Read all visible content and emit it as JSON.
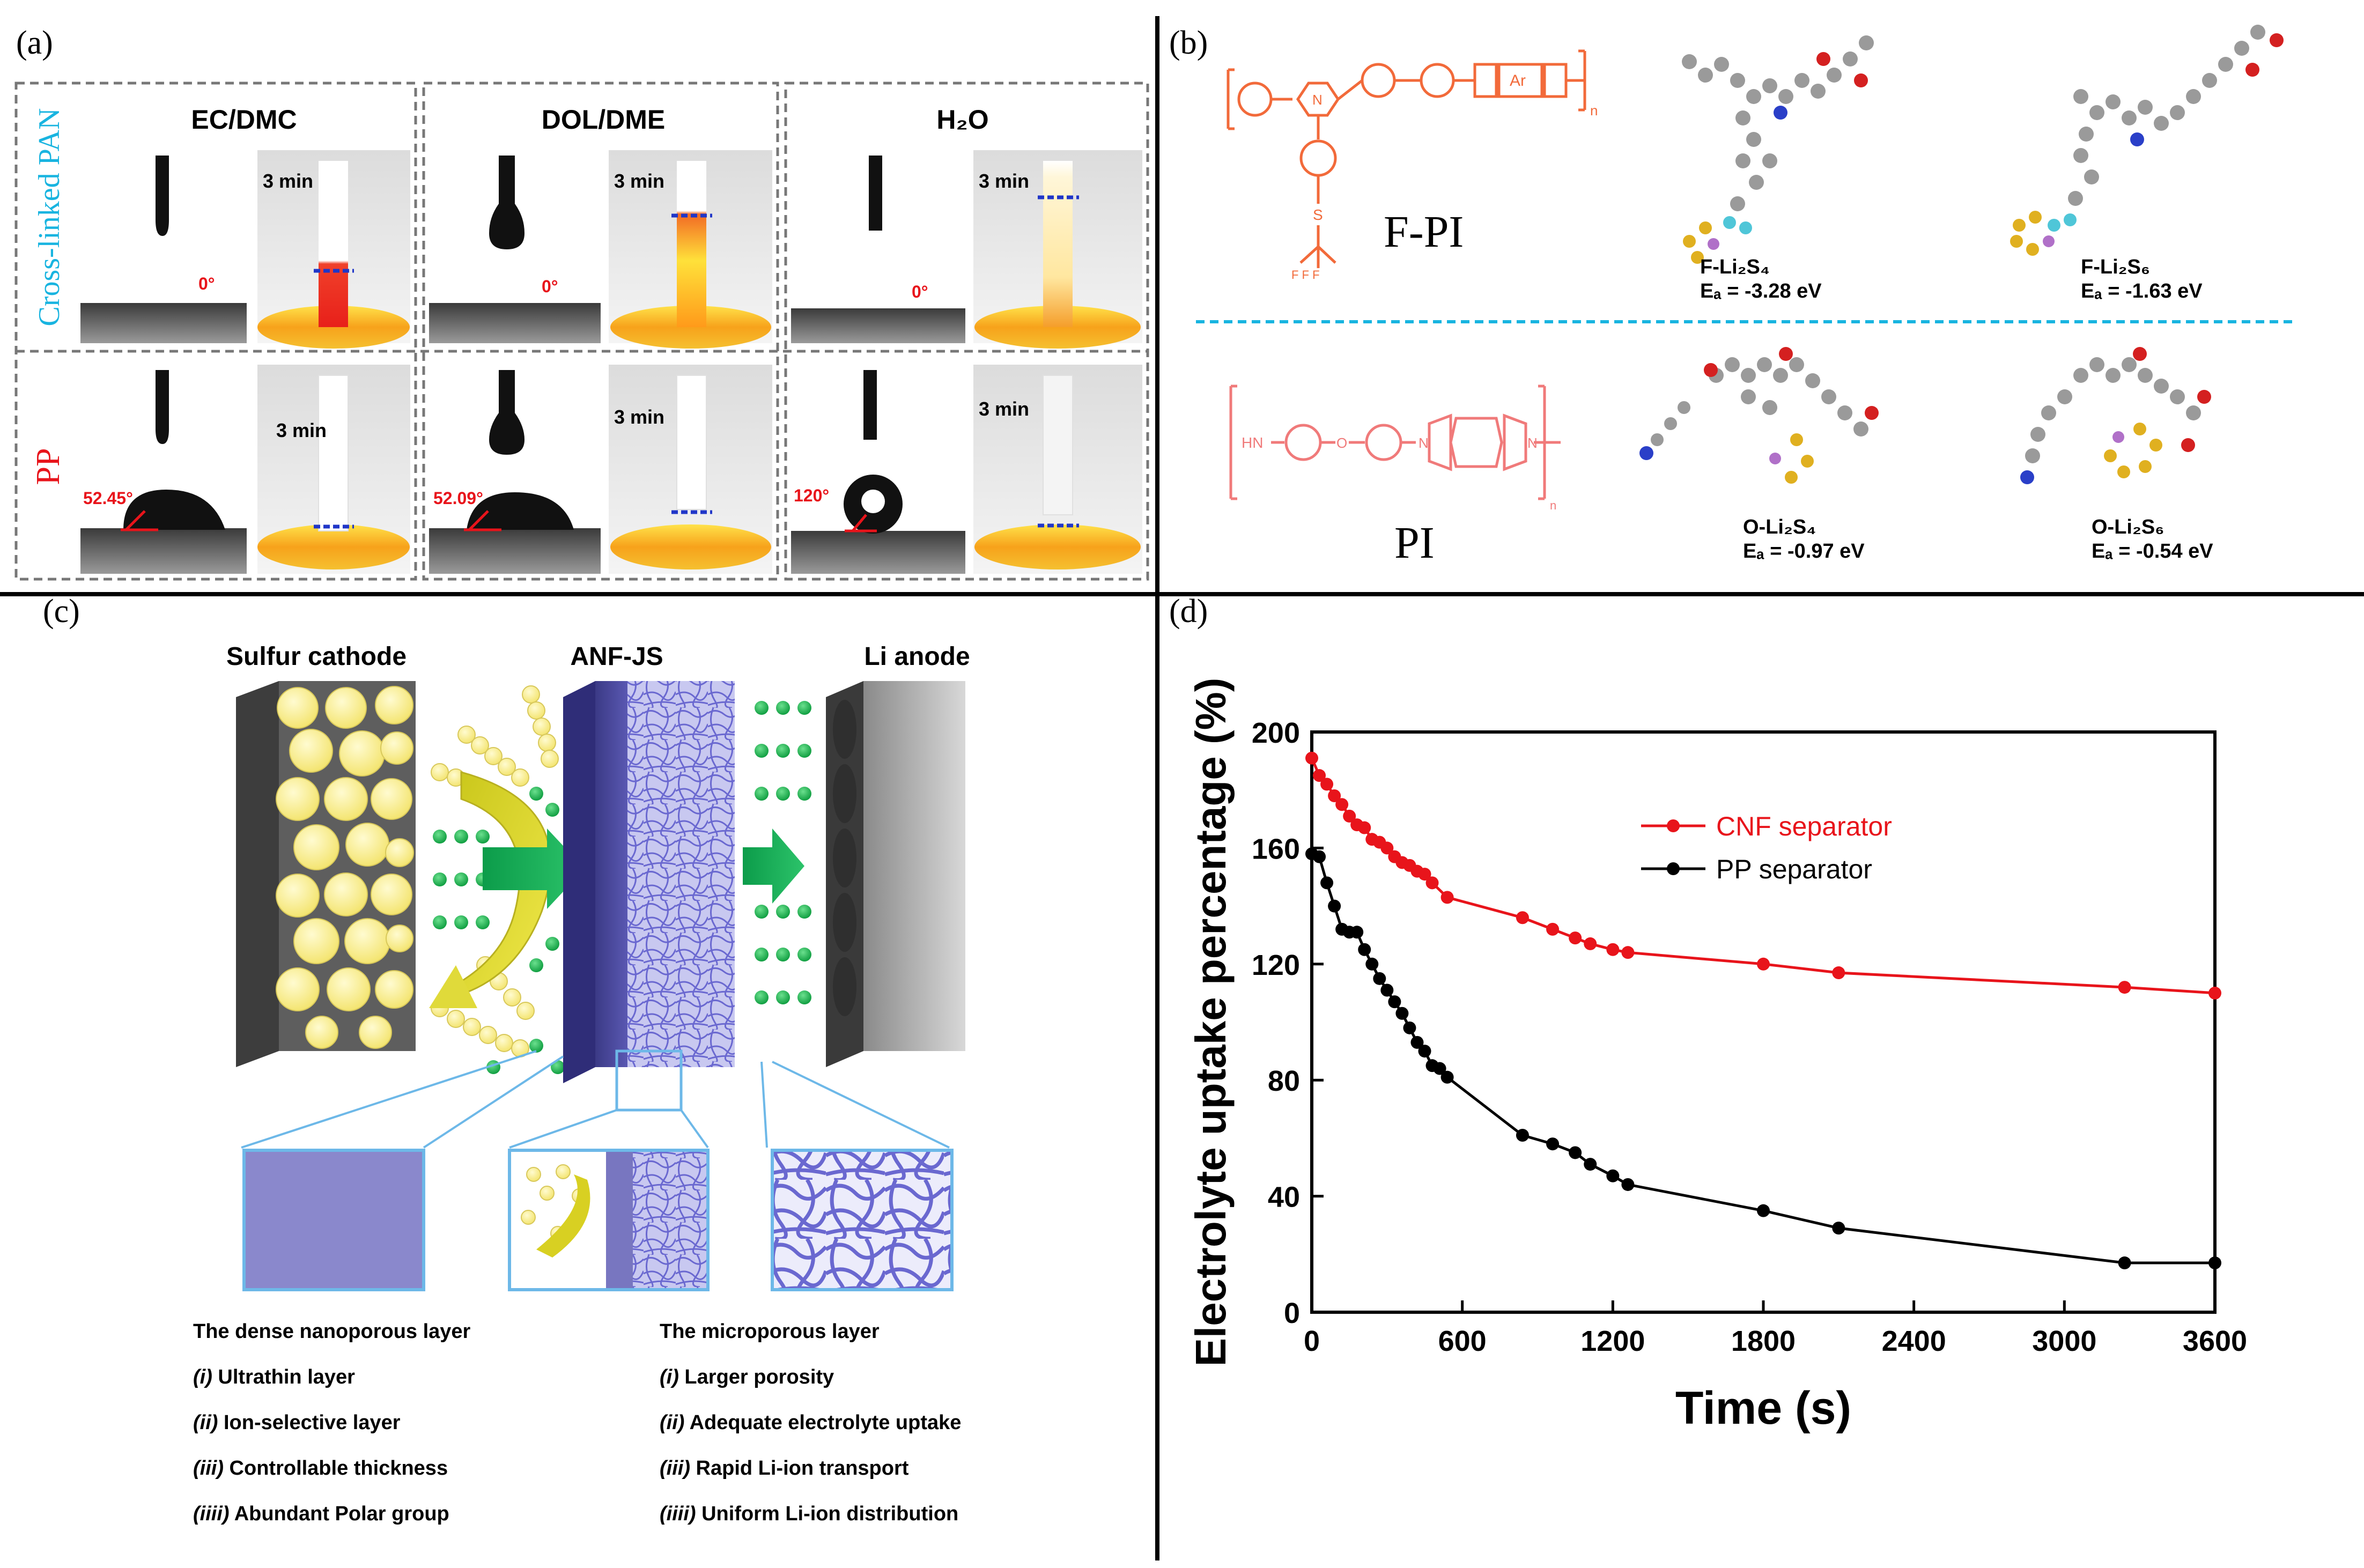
{
  "panel_a": {
    "label": "(a)",
    "columns": [
      "EC/DMC",
      "DOL/DME",
      "H₂O"
    ],
    "row_labels": [
      "Cross-linked PAN",
      "PP"
    ],
    "time_label": "3 min",
    "pan_angles": [
      "0°",
      "0°",
      "0°"
    ],
    "pp_angles": [
      "52.45°",
      "52.09°",
      "120°"
    ]
  },
  "panel_b": {
    "label": "(b)",
    "fpi_name": "F-PI",
    "pi_name": "PI",
    "mol_labels": [
      {
        "name": "F-Li₂S₄",
        "energy": "Eₐ = -3.28 eV"
      },
      {
        "name": "F-Li₂S₆",
        "energy": "Eₐ = -1.63 eV"
      },
      {
        "name": "O-Li₂S₄",
        "energy": "Eₐ = -0.97 eV"
      },
      {
        "name": "O-Li₂S₆",
        "energy": "Eₐ = -0.54 eV"
      }
    ],
    "struct_text": {
      "ar": "Ar",
      "n": "N",
      "n_sub": "n",
      "hn": "HN",
      "o": "O",
      "s": "S",
      "f": "F",
      "f3": "F F F"
    }
  },
  "panel_c": {
    "label": "(c)",
    "titles": [
      "Sulfur cathode",
      "ANF-JS",
      "Li anode"
    ],
    "left_heading": "The dense nanoporous layer",
    "left_items": [
      {
        "num": "(i)",
        "text": " Ultrathin layer"
      },
      {
        "num": "(ii)",
        "text": " Ion-selective layer"
      },
      {
        "num": "(iii)",
        "text": " Controllable thickness"
      },
      {
        "num": "(iiii)",
        "text": " Abundant Polar group"
      }
    ],
    "right_heading": "The microporous layer",
    "right_items": [
      {
        "num": "(i)",
        "text": " Larger porosity"
      },
      {
        "num": "(ii)",
        "text": " Adequate electrolyte uptake"
      },
      {
        "num": "(iii)",
        "text": " Rapid Li-ion transport"
      },
      {
        "num": "(iiii)",
        "text": " Uniform Li-ion distribution"
      }
    ]
  },
  "panel_d": {
    "label": "(d)"
  },
  "colors": {
    "cnf": "#e8141b",
    "pp": "#000000",
    "cyan": "#18b4e0",
    "orange": "#f26a3a",
    "pink": "#f07a7a"
  },
  "chart_data": {
    "type": "line",
    "title": "",
    "xlabel": "Time (s)",
    "ylabel": "Electrolyte uptake percentage (%)",
    "xlim": [
      0,
      3600
    ],
    "ylim": [
      0,
      200
    ],
    "xticks": [
      0,
      600,
      1200,
      1800,
      2400,
      3000,
      3600
    ],
    "yticks": [
      0,
      40,
      80,
      120,
      160,
      200
    ],
    "legend_position": "top-center",
    "series": [
      {
        "name": "CNF separator",
        "color": "#e8141b",
        "x": [
          0,
          30,
          60,
          90,
          120,
          150,
          180,
          210,
          240,
          270,
          300,
          330,
          360,
          390,
          420,
          450,
          480,
          540,
          840,
          960,
          1050,
          1110,
          1200,
          1260,
          1800,
          2100,
          3240,
          3600
        ],
        "y": [
          191,
          185,
          182,
          178,
          175,
          171,
          168,
          167,
          163,
          162,
          160,
          157,
          155,
          154,
          152,
          151,
          148,
          143,
          136,
          132,
          129,
          127,
          125,
          124,
          120,
          117,
          112,
          110
        ]
      },
      {
        "name": "PP separator",
        "color": "#000000",
        "x": [
          0,
          30,
          60,
          90,
          120,
          150,
          180,
          210,
          240,
          270,
          300,
          330,
          360,
          390,
          420,
          450,
          480,
          510,
          540,
          840,
          960,
          1050,
          1110,
          1200,
          1260,
          1800,
          2100,
          3240,
          3600
        ],
        "y": [
          158,
          157,
          148,
          140,
          132,
          131,
          131,
          125,
          120,
          115,
          111,
          107,
          103,
          98,
          93,
          90,
          85,
          84,
          81,
          61,
          58,
          55,
          51,
          47,
          44,
          35,
          29,
          17,
          17
        ]
      }
    ]
  }
}
